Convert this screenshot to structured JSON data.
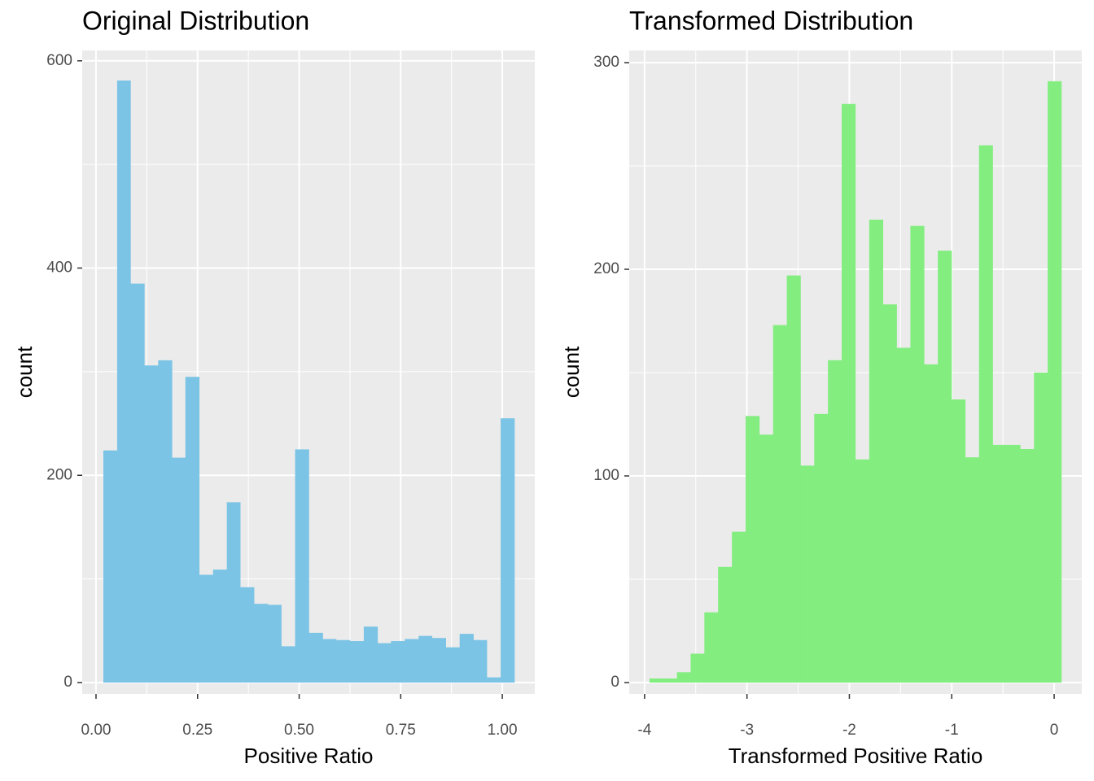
{
  "chart_data": [
    {
      "type": "histogram",
      "title": "Original Distribution",
      "x_label": "Positive Ratio",
      "y_label": "count",
      "color": "#7bc4e5",
      "bins": [
        0.018,
        0.052,
        0.085,
        0.119,
        0.153,
        0.187,
        0.22,
        0.254,
        0.288,
        0.322,
        0.355,
        0.389,
        0.423,
        0.456,
        0.49,
        0.524,
        0.558,
        0.591,
        0.625,
        0.659,
        0.693,
        0.726,
        0.76,
        0.794,
        0.827,
        0.861,
        0.895,
        0.929,
        0.962,
        0.996,
        1.03
      ],
      "values": [
        224,
        581,
        385,
        306,
        311,
        217,
        295,
        104,
        109,
        174,
        92,
        76,
        75,
        35,
        225,
        48,
        42,
        41,
        40,
        54,
        38,
        40,
        42,
        45,
        43,
        34,
        47,
        41,
        5,
        255
      ],
      "xlim": [
        -0.034,
        1.08
      ],
      "ylim": [
        -11,
        610
      ],
      "xticks": [
        {
          "value": 0,
          "label": "0.00"
        },
        {
          "value": 0.25,
          "label": "0.25"
        },
        {
          "value": 0.5,
          "label": "0.50"
        },
        {
          "value": 0.75,
          "label": "0.75"
        },
        {
          "value": 1,
          "label": "1.00"
        }
      ],
      "yticks": [
        0,
        200,
        400,
        600
      ],
      "x_minor_ticks": [
        0.125,
        0.375,
        0.625,
        0.875
      ],
      "y_minor_ticks": [
        100,
        300,
        500
      ],
      "grid": true
    },
    {
      "type": "histogram",
      "title": "Transformed Distribution",
      "x_label": "Transformed Positive Ratio",
      "y_label": "count",
      "color": "#83ed80",
      "bins": [
        -3.952,
        -3.818,
        -3.684,
        -3.55,
        -3.416,
        -3.282,
        -3.147,
        -3.013,
        -2.879,
        -2.745,
        -2.611,
        -2.477,
        -2.343,
        -2.209,
        -2.075,
        -1.941,
        -1.806,
        -1.672,
        -1.538,
        -1.404,
        -1.27,
        -1.136,
        -1.002,
        -0.868,
        -0.734,
        -0.6,
        -0.465,
        -0.331,
        -0.197,
        -0.063,
        0.071
      ],
      "values": [
        2,
        2,
        5,
        14,
        34,
        56,
        73,
        129,
        120,
        173,
        197,
        105,
        130,
        156,
        280,
        108,
        224,
        183,
        162,
        221,
        154,
        209,
        137,
        109,
        260,
        115,
        115,
        113,
        150,
        291
      ],
      "xlim": [
        -4.15,
        0.27
      ],
      "ylim": [
        -5.5,
        305.9
      ],
      "xticks": [
        -4,
        -3,
        -2,
        -1,
        0
      ],
      "yticks": [
        0,
        100,
        200,
        300
      ],
      "x_minor_ticks": [
        -3.5,
        -2.5,
        -1.5,
        -0.5
      ],
      "y_minor_ticks": [
        50,
        150,
        250
      ],
      "grid": true
    }
  ]
}
